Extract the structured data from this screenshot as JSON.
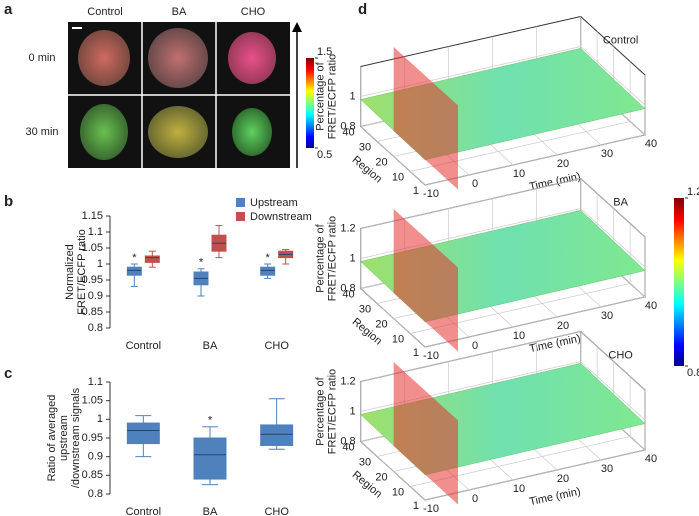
{
  "panel_labels": [
    "a",
    "b",
    "c",
    "d"
  ],
  "images": {
    "columns": [
      "Control",
      "BA",
      "CHO"
    ],
    "rows": [
      "0 min",
      "30 min"
    ],
    "colorbar": {
      "lim": [
        0.5,
        1.5
      ],
      "ticks": [
        0.5,
        1.5
      ]
    }
  },
  "chart_data": [
    {
      "type": "box",
      "ylabel": [
        "Normalized",
        "FRET/ECFP ratio"
      ],
      "categories": [
        "Control",
        "BA",
        "CHO"
      ],
      "ylim": [
        0.8,
        1.15
      ],
      "yticks": [
        0.8,
        0.85,
        0.9,
        0.95,
        1,
        1.05,
        1.1,
        1.15
      ],
      "legend": "top-right",
      "series": [
        {
          "name": "Upstream",
          "color": "#4f81bd",
          "boxes": [
            {
              "min": 0.93,
              "q1": 0.965,
              "median": 0.98,
              "q3": 0.99,
              "max": 1.0,
              "annotation": "*"
            },
            {
              "min": 0.9,
              "q1": 0.935,
              "median": 0.955,
              "q3": 0.975,
              "max": 0.985,
              "annotation": "*"
            },
            {
              "min": 0.955,
              "q1": 0.965,
              "median": 0.98,
              "q3": 0.99,
              "max": 1.0,
              "annotation": "*"
            }
          ]
        },
        {
          "name": "Downstream",
          "color": "#c0504d",
          "boxes": [
            {
              "min": 0.99,
              "q1": 1.005,
              "median": 1.02,
              "q3": 1.025,
              "max": 1.04
            },
            {
              "min": 1.02,
              "q1": 1.04,
              "median": 1.065,
              "q3": 1.09,
              "max": 1.12
            },
            {
              "min": 1.0,
              "q1": 1.02,
              "median": 1.03,
              "q3": 1.04,
              "max": 1.045
            }
          ]
        }
      ]
    },
    {
      "type": "box",
      "ylabel": [
        "Ratio of averaged",
        "upstream",
        "/downstream signals"
      ],
      "categories": [
        "Control",
        "BA",
        "CHO"
      ],
      "ylim": [
        0.8,
        1.1
      ],
      "yticks": [
        0.8,
        0.85,
        0.9,
        0.95,
        1,
        1.05,
        1.1
      ],
      "series": [
        {
          "color": "#4f81bd",
          "boxes": [
            {
              "min": 0.9,
              "q1": 0.935,
              "median": 0.97,
              "q3": 0.99,
              "max": 1.01
            },
            {
              "min": 0.825,
              "q1": 0.84,
              "median": 0.905,
              "q3": 0.95,
              "max": 0.98,
              "annotation": "*"
            },
            {
              "min": 0.92,
              "q1": 0.93,
              "median": 0.96,
              "q3": 0.985,
              "max": 1.055
            }
          ]
        }
      ]
    },
    {
      "type": "surface3d",
      "title": "Control",
      "zlabel": [
        "Percentage of",
        "FRET/ECFP ratio"
      ],
      "xlabel": "Time (min)",
      "ylabel": "Region",
      "xlim": [
        -10,
        40
      ],
      "xticks": [
        -10,
        0,
        10,
        20,
        30,
        40
      ],
      "ylim": [
        1,
        40
      ],
      "yticks": [
        1,
        10,
        20,
        30,
        40
      ],
      "zlim": [
        0.8,
        1.2
      ],
      "zticks": [
        0.8,
        1
      ]
    },
    {
      "type": "surface3d",
      "title": "BA",
      "zlabel": [
        "Percentage of",
        "FRET/ECFP ratio"
      ],
      "xlabel": "Time (min)",
      "ylabel": "Region",
      "xlim": [
        -10,
        40
      ],
      "xticks": [
        -10,
        0,
        10,
        20,
        30,
        40
      ],
      "ylim": [
        1,
        40
      ],
      "yticks": [
        1,
        10,
        20,
        30,
        40
      ],
      "zlim": [
        0.8,
        1.2
      ],
      "zticks": [
        0.8,
        1,
        1.2
      ]
    },
    {
      "type": "surface3d",
      "title": "CHO",
      "zlabel": [
        "Percentage of",
        "FRET/ECFP ratio"
      ],
      "xlabel": "Time (min)",
      "ylabel": "Region",
      "xlim": [
        -10,
        40
      ],
      "xticks": [
        -10,
        0,
        10,
        20,
        30,
        40
      ],
      "ylim": [
        1,
        40
      ],
      "yticks": [
        1,
        10,
        20,
        30,
        40
      ],
      "zlim": [
        0.8,
        1.2
      ],
      "zticks": [
        0.8,
        1,
        1.2
      ]
    }
  ],
  "surface_colorbar": {
    "lim": [
      0.8,
      1.2
    ],
    "ticks": [
      0.8,
      1.2
    ]
  }
}
